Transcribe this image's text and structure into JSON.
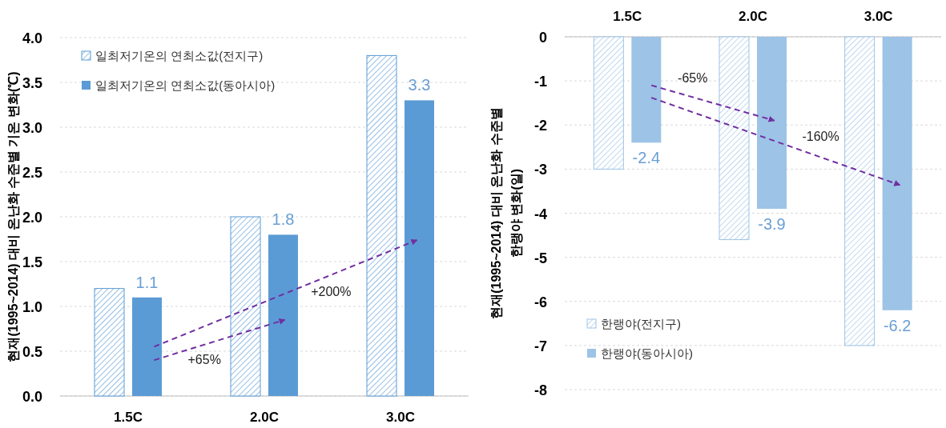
{
  "chart_data": [
    {
      "type": "bar",
      "ylabel": "현재(1995~2014) 대비 온난화 수준별 기온 변화(℃)",
      "categories": [
        "1.5C",
        "2.0C",
        "3.0C"
      ],
      "series": [
        {
          "name": "일최저기온의 연최소값(전지구)",
          "color": "#5b9bd5",
          "values": [
            1.2,
            2.0,
            3.8
          ]
        },
        {
          "name": "일최저기온의 연최소값(동아시아)",
          "color": "#5b9bd5",
          "values": [
            1.1,
            1.8,
            3.3
          ],
          "value_labels": [
            "1.1",
            "1.8",
            "3.3"
          ]
        }
      ],
      "ylim": [
        0,
        4
      ],
      "yticks": [
        {
          "value": 0,
          "label": "0.0"
        },
        {
          "value": 0.5,
          "label": "0.5"
        },
        {
          "value": 1,
          "label": "1.0"
        },
        {
          "value": 1.5,
          "label": "1.5"
        },
        {
          "value": 2,
          "label": "2.0"
        },
        {
          "value": 2.5,
          "label": "2.5"
        },
        {
          "value": 3,
          "label": "3.0"
        },
        {
          "value": 3.5,
          "label": "3.5"
        },
        {
          "value": 4,
          "label": "4.0"
        }
      ],
      "grid": "y",
      "legend": "top left",
      "annotations": [
        "+65%",
        "+200%"
      ]
    },
    {
      "type": "bar",
      "ylabel": "현재(1995~2014) 대비 온난화 수준별\n한랭야 변화(일)",
      "categories": [
        "1.5C",
        "2.0C",
        "3.0C"
      ],
      "series": [
        {
          "name": "한랭야(전지구)",
          "color": "#9dc3e6",
          "values": [
            -3.0,
            -4.6,
            -7.0
          ]
        },
        {
          "name": "한랭야(동아시아)",
          "color": "#9dc3e6",
          "values": [
            -2.4,
            -3.9,
            -6.2
          ],
          "value_labels": [
            "-2.4",
            "-3.9",
            "-6.2"
          ]
        }
      ],
      "ylim": [
        -8,
        0
      ],
      "yticks": [
        -8,
        -7,
        -6,
        -5,
        -4,
        -3,
        -2,
        -1,
        0
      ],
      "grid": "y",
      "legend": "bottom left",
      "annotations": [
        "-65%",
        "-160%"
      ]
    }
  ]
}
